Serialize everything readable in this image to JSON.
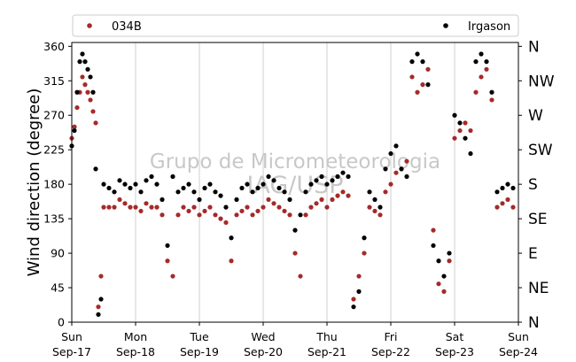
{
  "chart_data": {
    "type": "scatter",
    "ylabel": "Wind direction (degree)",
    "ylim": [
      0,
      365
    ],
    "yticks": [
      0,
      45,
      90,
      135,
      180,
      225,
      270,
      315,
      360
    ],
    "xlim": [
      "2023-09-17",
      "2023-09-24"
    ],
    "xticks": [
      {
        "day": "Sun",
        "date": "Sep-17"
      },
      {
        "day": "Mon",
        "date": "Sep-18"
      },
      {
        "day": "Tue",
        "date": "Sep-19"
      },
      {
        "day": "Wed",
        "date": "Sep-20"
      },
      {
        "day": "Thu",
        "date": "Sep-21"
      },
      {
        "day": "Fri",
        "date": "Sep-22"
      },
      {
        "day": "Sat",
        "date": "Sep-23"
      },
      {
        "day": "Sun",
        "date": "Sep-24"
      }
    ],
    "compass": [
      "N",
      "NE",
      "E",
      "SE",
      "S",
      "SW",
      "W",
      "NW",
      "N"
    ],
    "grid": "vertical",
    "legend_position": "top",
    "watermark": [
      "Grupo de Micrometeorologia",
      "IAG/USP"
    ],
    "series": [
      {
        "name": "034B",
        "color": "#a52a2a",
        "points": [
          [
            "2023-09-17T00:00",
            240
          ],
          [
            "2023-09-17T01:00",
            255
          ],
          [
            "2023-09-17T02:00",
            280
          ],
          [
            "2023-09-17T03:00",
            300
          ],
          [
            "2023-09-17T04:00",
            320
          ],
          [
            "2023-09-17T05:00",
            310
          ],
          [
            "2023-09-17T06:00",
            300
          ],
          [
            "2023-09-17T07:00",
            290
          ],
          [
            "2023-09-17T08:00",
            275
          ],
          [
            "2023-09-17T09:00",
            260
          ],
          [
            "2023-09-17T10:00",
            20
          ],
          [
            "2023-09-17T11:00",
            60
          ],
          [
            "2023-09-17T12:00",
            150
          ],
          [
            "2023-09-17T14:00",
            150
          ],
          [
            "2023-09-17T16:00",
            150
          ],
          [
            "2023-09-17T18:00",
            160
          ],
          [
            "2023-09-17T20:00",
            155
          ],
          [
            "2023-09-17T22:00",
            150
          ],
          [
            "2023-09-18T00:00",
            150
          ],
          [
            "2023-09-18T02:00",
            145
          ],
          [
            "2023-09-18T04:00",
            155
          ],
          [
            "2023-09-18T06:00",
            150
          ],
          [
            "2023-09-18T08:00",
            150
          ],
          [
            "2023-09-18T10:00",
            140
          ],
          [
            "2023-09-18T12:00",
            80
          ],
          [
            "2023-09-18T14:00",
            60
          ],
          [
            "2023-09-18T16:00",
            140
          ],
          [
            "2023-09-18T18:00",
            150
          ],
          [
            "2023-09-18T20:00",
            145
          ],
          [
            "2023-09-18T22:00",
            150
          ],
          [
            "2023-09-19T00:00",
            140
          ],
          [
            "2023-09-19T02:00",
            145
          ],
          [
            "2023-09-19T04:00",
            150
          ],
          [
            "2023-09-19T06:00",
            140
          ],
          [
            "2023-09-19T08:00",
            135
          ],
          [
            "2023-09-19T10:00",
            130
          ],
          [
            "2023-09-19T12:00",
            80
          ],
          [
            "2023-09-19T14:00",
            140
          ],
          [
            "2023-09-19T16:00",
            145
          ],
          [
            "2023-09-19T18:00",
            150
          ],
          [
            "2023-09-19T20:00",
            140
          ],
          [
            "2023-09-19T22:00",
            145
          ],
          [
            "2023-09-20T00:00",
            150
          ],
          [
            "2023-09-20T02:00",
            160
          ],
          [
            "2023-09-20T04:00",
            155
          ],
          [
            "2023-09-20T06:00",
            150
          ],
          [
            "2023-09-20T08:00",
            145
          ],
          [
            "2023-09-20T10:00",
            140
          ],
          [
            "2023-09-20T12:00",
            90
          ],
          [
            "2023-09-20T14:00",
            60
          ],
          [
            "2023-09-20T16:00",
            140
          ],
          [
            "2023-09-20T18:00",
            150
          ],
          [
            "2023-09-20T20:00",
            155
          ],
          [
            "2023-09-20T22:00",
            160
          ],
          [
            "2023-09-21T00:00",
            150
          ],
          [
            "2023-09-21T02:00",
            160
          ],
          [
            "2023-09-21T04:00",
            165
          ],
          [
            "2023-09-21T06:00",
            170
          ],
          [
            "2023-09-21T08:00",
            165
          ],
          [
            "2023-09-21T10:00",
            30
          ],
          [
            "2023-09-21T12:00",
            60
          ],
          [
            "2023-09-21T14:00",
            90
          ],
          [
            "2023-09-21T16:00",
            150
          ],
          [
            "2023-09-21T18:00",
            145
          ],
          [
            "2023-09-21T20:00",
            140
          ],
          [
            "2023-09-21T22:00",
            170
          ],
          [
            "2023-09-22T00:00",
            180
          ],
          [
            "2023-09-22T02:00",
            195
          ],
          [
            "2023-09-22T04:00",
            200
          ],
          [
            "2023-09-22T06:00",
            210
          ],
          [
            "2023-09-22T08:00",
            320
          ],
          [
            "2023-09-22T10:00",
            300
          ],
          [
            "2023-09-22T12:00",
            310
          ],
          [
            "2023-09-22T14:00",
            330
          ],
          [
            "2023-09-22T16:00",
            120
          ],
          [
            "2023-09-22T18:00",
            50
          ],
          [
            "2023-09-22T20:00",
            40
          ],
          [
            "2023-09-22T22:00",
            80
          ],
          [
            "2023-09-23T00:00",
            240
          ],
          [
            "2023-09-23T02:00",
            250
          ],
          [
            "2023-09-23T04:00",
            260
          ],
          [
            "2023-09-23T06:00",
            250
          ],
          [
            "2023-09-23T08:00",
            300
          ],
          [
            "2023-09-23T10:00",
            320
          ],
          [
            "2023-09-23T12:00",
            330
          ],
          [
            "2023-09-23T14:00",
            290
          ],
          [
            "2023-09-23T16:00",
            150
          ],
          [
            "2023-09-23T18:00",
            155
          ],
          [
            "2023-09-23T20:00",
            160
          ],
          [
            "2023-09-23T22:00",
            150
          ]
        ]
      },
      {
        "name": "Irgason",
        "color": "#000000",
        "points": [
          [
            "2023-09-17T00:00",
            230
          ],
          [
            "2023-09-17T01:00",
            250
          ],
          [
            "2023-09-17T02:00",
            300
          ],
          [
            "2023-09-17T03:00",
            340
          ],
          [
            "2023-09-17T04:00",
            350
          ],
          [
            "2023-09-17T05:00",
            340
          ],
          [
            "2023-09-17T06:00",
            330
          ],
          [
            "2023-09-17T07:00",
            320
          ],
          [
            "2023-09-17T08:00",
            300
          ],
          [
            "2023-09-17T09:00",
            200
          ],
          [
            "2023-09-17T10:00",
            10
          ],
          [
            "2023-09-17T11:00",
            30
          ],
          [
            "2023-09-17T12:00",
            180
          ],
          [
            "2023-09-17T14:00",
            175
          ],
          [
            "2023-09-17T16:00",
            170
          ],
          [
            "2023-09-17T18:00",
            185
          ],
          [
            "2023-09-17T20:00",
            180
          ],
          [
            "2023-09-17T22:00",
            175
          ],
          [
            "2023-09-18T00:00",
            180
          ],
          [
            "2023-09-18T02:00",
            170
          ],
          [
            "2023-09-18T04:00",
            185
          ],
          [
            "2023-09-18T06:00",
            190
          ],
          [
            "2023-09-18T08:00",
            180
          ],
          [
            "2023-09-18T10:00",
            160
          ],
          [
            "2023-09-18T12:00",
            100
          ],
          [
            "2023-09-18T14:00",
            190
          ],
          [
            "2023-09-18T16:00",
            170
          ],
          [
            "2023-09-18T18:00",
            175
          ],
          [
            "2023-09-18T20:00",
            180
          ],
          [
            "2023-09-18T22:00",
            170
          ],
          [
            "2023-09-19T00:00",
            160
          ],
          [
            "2023-09-19T02:00",
            175
          ],
          [
            "2023-09-19T04:00",
            180
          ],
          [
            "2023-09-19T06:00",
            170
          ],
          [
            "2023-09-19T08:00",
            165
          ],
          [
            "2023-09-19T10:00",
            150
          ],
          [
            "2023-09-19T12:00",
            110
          ],
          [
            "2023-09-19T14:00",
            160
          ],
          [
            "2023-09-19T16:00",
            175
          ],
          [
            "2023-09-19T18:00",
            180
          ],
          [
            "2023-09-19T20:00",
            170
          ],
          [
            "2023-09-19T22:00",
            175
          ],
          [
            "2023-09-20T00:00",
            180
          ],
          [
            "2023-09-20T02:00",
            190
          ],
          [
            "2023-09-20T04:00",
            185
          ],
          [
            "2023-09-20T06:00",
            175
          ],
          [
            "2023-09-20T08:00",
            170
          ],
          [
            "2023-09-20T10:00",
            160
          ],
          [
            "2023-09-20T12:00",
            120
          ],
          [
            "2023-09-20T14:00",
            140
          ],
          [
            "2023-09-20T16:00",
            170
          ],
          [
            "2023-09-20T18:00",
            180
          ],
          [
            "2023-09-20T20:00",
            185
          ],
          [
            "2023-09-20T22:00",
            190
          ],
          [
            "2023-09-21T00:00",
            180
          ],
          [
            "2023-09-21T02:00",
            185
          ],
          [
            "2023-09-21T04:00",
            190
          ],
          [
            "2023-09-21T06:00",
            195
          ],
          [
            "2023-09-21T08:00",
            190
          ],
          [
            "2023-09-21T10:00",
            20
          ],
          [
            "2023-09-21T12:00",
            40
          ],
          [
            "2023-09-21T14:00",
            110
          ],
          [
            "2023-09-21T16:00",
            170
          ],
          [
            "2023-09-21T18:00",
            160
          ],
          [
            "2023-09-21T20:00",
            150
          ],
          [
            "2023-09-21T22:00",
            200
          ],
          [
            "2023-09-22T00:00",
            220
          ],
          [
            "2023-09-22T02:00",
            230
          ],
          [
            "2023-09-22T04:00",
            200
          ],
          [
            "2023-09-22T06:00",
            190
          ],
          [
            "2023-09-22T08:00",
            340
          ],
          [
            "2023-09-22T10:00",
            350
          ],
          [
            "2023-09-22T12:00",
            340
          ],
          [
            "2023-09-22T14:00",
            310
          ],
          [
            "2023-09-22T16:00",
            100
          ],
          [
            "2023-09-22T18:00",
            80
          ],
          [
            "2023-09-22T20:00",
            60
          ],
          [
            "2023-09-22T22:00",
            90
          ],
          [
            "2023-09-23T00:00",
            270
          ],
          [
            "2023-09-23T02:00",
            260
          ],
          [
            "2023-09-23T04:00",
            240
          ],
          [
            "2023-09-23T06:00",
            220
          ],
          [
            "2023-09-23T08:00",
            340
          ],
          [
            "2023-09-23T10:00",
            350
          ],
          [
            "2023-09-23T12:00",
            340
          ],
          [
            "2023-09-23T14:00",
            300
          ],
          [
            "2023-09-23T16:00",
            170
          ],
          [
            "2023-09-23T18:00",
            175
          ],
          [
            "2023-09-23T20:00",
            180
          ],
          [
            "2023-09-23T22:00",
            175
          ]
        ]
      }
    ]
  }
}
